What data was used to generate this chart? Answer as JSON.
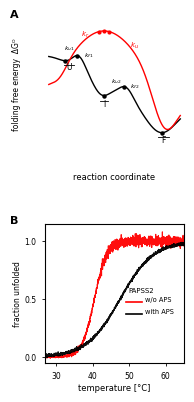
{
  "panel_a_label": "A",
  "panel_b_label": "B",
  "xlabel_a": "reaction coordinate",
  "ylabel_a": "folding free energy  ΔGᴼ",
  "xlabel_b": "temperature [°C]",
  "ylabel_b": "fraction unfolded",
  "xlim_b": [
    27,
    65
  ],
  "ylim_b": [
    -0.05,
    1.15
  ],
  "xticks_b": [
    30,
    40,
    50,
    60
  ],
  "yticks_b": [
    0.0,
    0.5,
    1.0
  ],
  "legend_title": "PAPSS2",
  "legend_red": "w/o APS",
  "legend_black": "with APS",
  "red_color": "#ff0000",
  "black_color": "#000000",
  "background": "#ffffff",
  "red_tm": 40.5,
  "black_tm": 47.5
}
